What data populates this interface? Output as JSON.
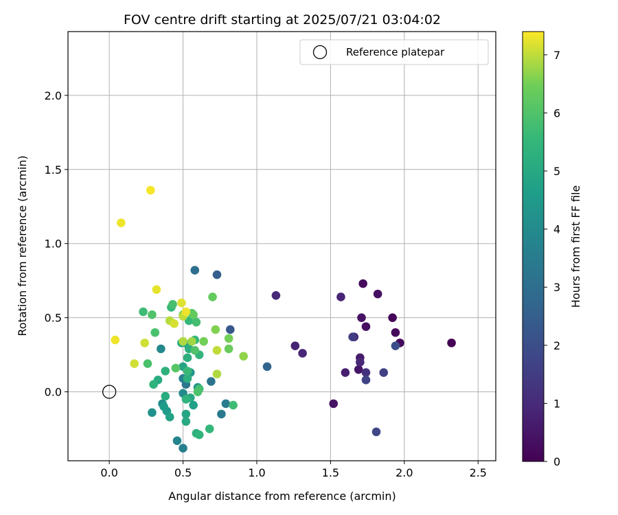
{
  "chart_data": {
    "type": "scatter",
    "title": "FOV centre drift starting at 2025/07/21 03:04:02",
    "xlabel": "Angular distance from reference (arcmin)",
    "ylabel": "Rotation from reference (arcmin)",
    "xlim": [
      -0.28,
      2.62
    ],
    "ylim": [
      -0.465,
      2.43
    ],
    "xticks": [
      0.0,
      0.5,
      1.0,
      1.5,
      2.0,
      2.5
    ],
    "xtick_labels": [
      "0.0",
      "0.5",
      "1.0",
      "1.5",
      "2.0",
      "2.5"
    ],
    "yticks": [
      0.0,
      0.5,
      1.0,
      1.5,
      2.0
    ],
    "ytick_labels": [
      "0.0",
      "0.5",
      "1.0",
      "1.5",
      "2.0"
    ],
    "grid": true,
    "legend": {
      "position": "top-right",
      "entries": [
        "Reference platepar"
      ]
    },
    "reference_point": {
      "x": 0.0,
      "y": 0.0,
      "marker": "open-circle"
    },
    "colormap": "viridis",
    "colorbar": {
      "label": "Hours from first FF file",
      "range": [
        0,
        7.4
      ],
      "ticks": [
        0,
        1,
        2,
        3,
        4,
        5,
        6,
        7
      ],
      "tick_labels": [
        "0",
        "1",
        "2",
        "3",
        "4",
        "5",
        "6",
        "7"
      ]
    },
    "points": [
      {
        "x": 2.32,
        "y": 0.33,
        "c": 0.05
      },
      {
        "x": 1.92,
        "y": 0.5,
        "c": 0.1
      },
      {
        "x": 1.94,
        "y": 0.4,
        "c": 0.15
      },
      {
        "x": 1.97,
        "y": 0.33,
        "c": 0.2
      },
      {
        "x": 1.72,
        "y": 0.73,
        "c": 0.25
      },
      {
        "x": 1.82,
        "y": 0.66,
        "c": 0.35
      },
      {
        "x": 1.74,
        "y": 0.44,
        "c": 0.3
      },
      {
        "x": 1.71,
        "y": 0.5,
        "c": 0.4
      },
      {
        "x": 1.52,
        "y": -0.08,
        "c": 0.4
      },
      {
        "x": 1.69,
        "y": 0.15,
        "c": 0.5
      },
      {
        "x": 1.7,
        "y": 0.23,
        "c": 0.6
      },
      {
        "x": 1.6,
        "y": 0.13,
        "c": 0.7
      },
      {
        "x": 1.66,
        "y": 0.37,
        "c": 0.8
      },
      {
        "x": 1.7,
        "y": 0.2,
        "c": 0.9
      },
      {
        "x": 1.57,
        "y": 0.64,
        "c": 0.85
      },
      {
        "x": 1.26,
        "y": 0.31,
        "c": 0.8
      },
      {
        "x": 1.31,
        "y": 0.26,
        "c": 0.9
      },
      {
        "x": 1.13,
        "y": 0.65,
        "c": 0.95
      },
      {
        "x": 1.74,
        "y": 0.13,
        "c": 1.2
      },
      {
        "x": 1.65,
        "y": 0.37,
        "c": 1.5
      },
      {
        "x": 1.86,
        "y": 0.13,
        "c": 1.6
      },
      {
        "x": 1.74,
        "y": 0.08,
        "c": 1.7
      },
      {
        "x": 1.81,
        "y": -0.27,
        "c": 1.8
      },
      {
        "x": 1.94,
        "y": 0.31,
        "c": 2.0
      },
      {
        "x": 0.82,
        "y": 0.42,
        "c": 2.3
      },
      {
        "x": 0.73,
        "y": 0.79,
        "c": 2.5
      },
      {
        "x": 1.07,
        "y": 0.17,
        "c": 2.7
      },
      {
        "x": 0.58,
        "y": 0.82,
        "c": 3.0
      },
      {
        "x": 0.69,
        "y": 0.07,
        "c": 3.2
      },
      {
        "x": 0.52,
        "y": 0.05,
        "c": 3.3
      },
      {
        "x": 0.76,
        "y": -0.15,
        "c": 3.4
      },
      {
        "x": 0.79,
        "y": -0.08,
        "c": 3.5
      },
      {
        "x": 0.5,
        "y": -0.38,
        "c": 3.6
      },
      {
        "x": 0.5,
        "y": 0.09,
        "c": 3.7
      },
      {
        "x": 0.46,
        "y": -0.33,
        "c": 3.8
      },
      {
        "x": 0.35,
        "y": 0.29,
        "c": 3.9
      },
      {
        "x": 0.5,
        "y": -0.01,
        "c": 4.0
      },
      {
        "x": 0.36,
        "y": -0.08,
        "c": 4.1
      },
      {
        "x": 0.29,
        "y": -0.14,
        "c": 4.2
      },
      {
        "x": 0.6,
        "y": 0.03,
        "c": 4.3
      },
      {
        "x": 0.55,
        "y": 0.13,
        "c": 4.4
      },
      {
        "x": 0.39,
        "y": -0.13,
        "c": 4.5
      },
      {
        "x": 0.37,
        "y": -0.1,
        "c": 4.6
      },
      {
        "x": 0.57,
        "y": -0.09,
        "c": 4.7
      },
      {
        "x": 0.41,
        "y": -0.17,
        "c": 4.8
      },
      {
        "x": 0.5,
        "y": 0.17,
        "c": 4.85
      },
      {
        "x": 0.52,
        "y": -0.15,
        "c": 4.9
      },
      {
        "x": 0.53,
        "y": 0.32,
        "c": 4.9
      },
      {
        "x": 0.49,
        "y": 0.33,
        "c": 5.0
      },
      {
        "x": 0.52,
        "y": -0.2,
        "c": 5.0
      },
      {
        "x": 0.55,
        "y": -0.04,
        "c": 5.0
      },
      {
        "x": 0.33,
        "y": 0.08,
        "c": 5.1
      },
      {
        "x": 0.38,
        "y": -0.03,
        "c": 5.15
      },
      {
        "x": 0.53,
        "y": 0.23,
        "c": 5.2
      },
      {
        "x": 0.54,
        "y": 0.29,
        "c": 5.2
      },
      {
        "x": 0.53,
        "y": 0.09,
        "c": 5.25
      },
      {
        "x": 0.38,
        "y": 0.14,
        "c": 5.3
      },
      {
        "x": 0.59,
        "y": -0.28,
        "c": 5.3
      },
      {
        "x": 0.3,
        "y": 0.05,
        "c": 5.35
      },
      {
        "x": 0.61,
        "y": -0.29,
        "c": 5.4
      },
      {
        "x": 0.52,
        "y": -0.05,
        "c": 5.4
      },
      {
        "x": 0.61,
        "y": 0.25,
        "c": 5.45
      },
      {
        "x": 0.68,
        "y": -0.25,
        "c": 5.5
      },
      {
        "x": 0.58,
        "y": 0.35,
        "c": 5.5
      },
      {
        "x": 0.54,
        "y": 0.48,
        "c": 5.55
      },
      {
        "x": 0.53,
        "y": 0.14,
        "c": 5.6
      },
      {
        "x": 0.42,
        "y": 0.57,
        "c": 5.6
      },
      {
        "x": 0.84,
        "y": -0.09,
        "c": 5.7
      },
      {
        "x": 0.23,
        "y": 0.54,
        "c": 5.7
      },
      {
        "x": 0.59,
        "y": 0.47,
        "c": 5.8
      },
      {
        "x": 0.61,
        "y": 0.02,
        "c": 5.8
      },
      {
        "x": 0.43,
        "y": 0.59,
        "c": 5.85
      },
      {
        "x": 0.31,
        "y": 0.4,
        "c": 5.9
      },
      {
        "x": 0.26,
        "y": 0.19,
        "c": 5.9
      },
      {
        "x": 0.6,
        "y": 0.0,
        "c": 5.95
      },
      {
        "x": 0.58,
        "y": 0.28,
        "c": 6.0
      },
      {
        "x": 0.29,
        "y": 0.52,
        "c": 6.0
      },
      {
        "x": 0.56,
        "y": 0.53,
        "c": 6.1
      },
      {
        "x": 0.45,
        "y": 0.16,
        "c": 6.1
      },
      {
        "x": 0.5,
        "y": 0.52,
        "c": 6.2
      },
      {
        "x": 0.7,
        "y": 0.64,
        "c": 6.3
      },
      {
        "x": 0.57,
        "y": 0.52,
        "c": 6.3
      },
      {
        "x": 0.81,
        "y": 0.29,
        "c": 6.4
      },
      {
        "x": 0.81,
        "y": 0.36,
        "c": 6.5
      },
      {
        "x": 0.64,
        "y": 0.34,
        "c": 6.5
      },
      {
        "x": 0.72,
        "y": 0.42,
        "c": 6.6
      },
      {
        "x": 0.91,
        "y": 0.24,
        "c": 6.7
      },
      {
        "x": 0.56,
        "y": 0.34,
        "c": 6.8
      },
      {
        "x": 0.5,
        "y": 0.34,
        "c": 6.9
      },
      {
        "x": 0.73,
        "y": 0.12,
        "c": 6.9
      },
      {
        "x": 0.41,
        "y": 0.48,
        "c": 6.95
      },
      {
        "x": 0.73,
        "y": 0.28,
        "c": 7.0
      },
      {
        "x": 0.5,
        "y": 0.51,
        "c": 7.0
      },
      {
        "x": 0.24,
        "y": 0.33,
        "c": 7.1
      },
      {
        "x": 0.17,
        "y": 0.19,
        "c": 7.1
      },
      {
        "x": 0.44,
        "y": 0.46,
        "c": 7.15
      },
      {
        "x": 0.49,
        "y": 0.6,
        "c": 7.2
      },
      {
        "x": 0.32,
        "y": 0.69,
        "c": 7.25
      },
      {
        "x": 0.52,
        "y": 0.54,
        "c": 7.3
      },
      {
        "x": 0.04,
        "y": 0.35,
        "c": 7.3
      },
      {
        "x": 0.08,
        "y": 1.14,
        "c": 7.3
      },
      {
        "x": 0.28,
        "y": 1.36,
        "c": 7.35
      }
    ]
  }
}
